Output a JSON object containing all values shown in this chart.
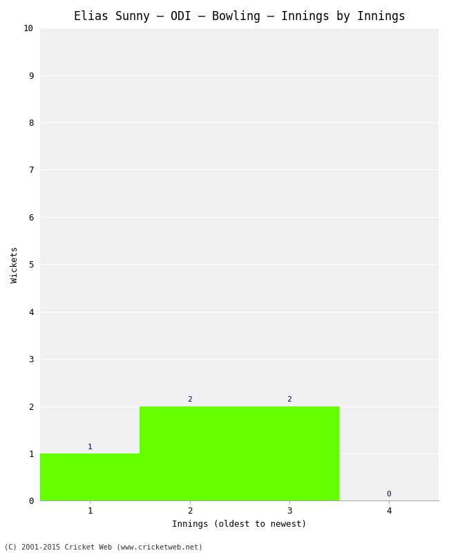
{
  "title": "Elias Sunny – ODI – Bowling – Innings by Innings",
  "xlabel": "Innings (oldest to newest)",
  "ylabel": "Wickets",
  "categories": [
    1,
    2,
    3,
    4
  ],
  "values": [
    1,
    2,
    2,
    0
  ],
  "bar_color": "#66ff00",
  "bar_edge_color": "#66ff00",
  "ylim": [
    0,
    10
  ],
  "yticks": [
    0,
    1,
    2,
    3,
    4,
    5,
    6,
    7,
    8,
    9,
    10
  ],
  "xticks": [
    1,
    2,
    3,
    4
  ],
  "background_color": "#ffffff",
  "plot_bg_color": "#f0f0f0",
  "grid_color": "#ffffff",
  "annotation_color": "#00008b",
  "footer": "(C) 2001-2015 Cricket Web (www.cricketweb.net)",
  "title_fontsize": 12,
  "axis_label_fontsize": 9,
  "tick_fontsize": 9,
  "annotation_fontsize": 8,
  "footer_fontsize": 7.5
}
